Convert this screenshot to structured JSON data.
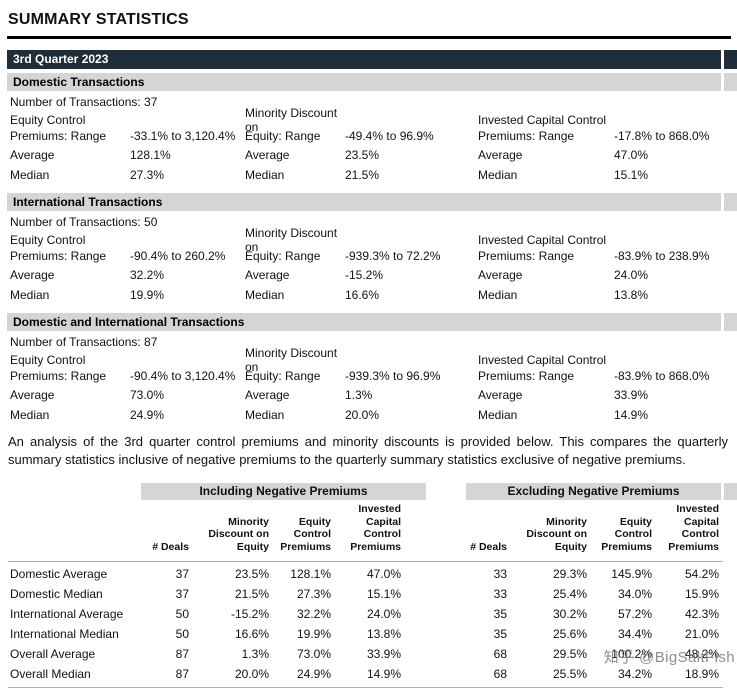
{
  "page": {
    "title": "SUMMARY STATISTICS",
    "quarter_header": "3rd Quarter 2023",
    "analysis_paragraph": "An analysis of the 3rd quarter control premiums and minority discounts is provided below. This compares the quarterly summary statistics inclusive of negative premiums to the quarterly summary statistics exclusive of negative premiums.",
    "watermark": "知乎 @BigSaltFish"
  },
  "labels": {
    "average": "Average",
    "median": "Median"
  },
  "colors": {
    "quarter_bar_bg": "#202e3c",
    "section_bar_bg": "#d4d5d6",
    "watermark_gray": "#808080"
  },
  "sections": [
    {
      "title": "Domestic Transactions",
      "transactions": "Number of Transactions: 37",
      "stats": [
        {
          "label_line1": "Equity Control",
          "label_line2": "Premiums: Range",
          "range": "-33.1% to 3,120.4%",
          "average": "128.1%",
          "median": "27.3%"
        },
        {
          "label_line1": "Minority Discount on",
          "label_line2": "Equity: Range",
          "range": "-49.4% to 96.9%",
          "average": "23.5%",
          "median": "21.5%"
        },
        {
          "label_line1": "Invested Capital Control",
          "label_line2": "Premiums: Range",
          "range": "-17.8% to 868.0%",
          "average": "47.0%",
          "median": "15.1%"
        }
      ]
    },
    {
      "title": "International Transactions",
      "transactions": "Number of Transactions: 50",
      "stats": [
        {
          "label_line1": "Equity Control",
          "label_line2": "Premiums: Range",
          "range": "-90.4% to 260.2%",
          "average": "32.2%",
          "median": "19.9%"
        },
        {
          "label_line1": "Minority Discount on",
          "label_line2": "Equity: Range",
          "range": "-939.3% to 72.2%",
          "average": "-15.2%",
          "median": "16.6%"
        },
        {
          "label_line1": "Invested Capital Control",
          "label_line2": "Premiums: Range",
          "range": "-83.9% to 238.9%",
          "average": "24.0%",
          "median": "13.8%"
        }
      ]
    },
    {
      "title": "Domestic and International Transactions",
      "transactions": "Number of Transactions: 87",
      "stats": [
        {
          "label_line1": "Equity Control",
          "label_line2": "Premiums: Range",
          "range": "-90.4% to 3,120.4%",
          "average": "73.0%",
          "median": "24.9%"
        },
        {
          "label_line1": "Minority Discount on",
          "label_line2": "Equity: Range",
          "range": "-939.3% to 96.9%",
          "average": "1.3%",
          "median": "20.0%"
        },
        {
          "label_line1": "Invested Capital Control",
          "label_line2": "Premiums: Range",
          "range": "-83.9% to 868.0%",
          "average": "33.9%",
          "median": "14.9%"
        }
      ]
    }
  ],
  "comparison": {
    "group_headers": [
      "Including Negative Premiums",
      "Excluding Negative Premiums"
    ],
    "column_headers": [
      "# Deals",
      "Minority\nDiscount on\nEquity",
      "Equity\nControl\nPremiums",
      "Invested\nCapital\nControl\nPremiums"
    ],
    "rows": [
      {
        "label": "Domestic Average",
        "including": [
          "37",
          "23.5%",
          "128.1%",
          "47.0%"
        ],
        "excluding": [
          "33",
          "29.3%",
          "145.9%",
          "54.2%"
        ]
      },
      {
        "label": "Domestic Median",
        "including": [
          "37",
          "21.5%",
          "27.3%",
          "15.1%"
        ],
        "excluding": [
          "33",
          "25.4%",
          "34.0%",
          "15.9%"
        ]
      },
      {
        "label": "International Average",
        "including": [
          "50",
          "-15.2%",
          "32.2%",
          "24.0%"
        ],
        "excluding": [
          "35",
          "30.2%",
          "57.2%",
          "42.3%"
        ]
      },
      {
        "label": "International Median",
        "including": [
          "50",
          "16.6%",
          "19.9%",
          "13.8%"
        ],
        "excluding": [
          "35",
          "25.6%",
          "34.4%",
          "21.0%"
        ]
      },
      {
        "label": "Overall Average",
        "including": [
          "87",
          "1.3%",
          "73.0%",
          "33.9%"
        ],
        "excluding": [
          "68",
          "29.5%",
          "100.2%",
          "48.2%"
        ]
      },
      {
        "label": "Overall Median",
        "including": [
          "87",
          "20.0%",
          "24.9%",
          "14.9%"
        ],
        "excluding": [
          "68",
          "25.5%",
          "34.2%",
          "18.9%"
        ]
      }
    ]
  }
}
